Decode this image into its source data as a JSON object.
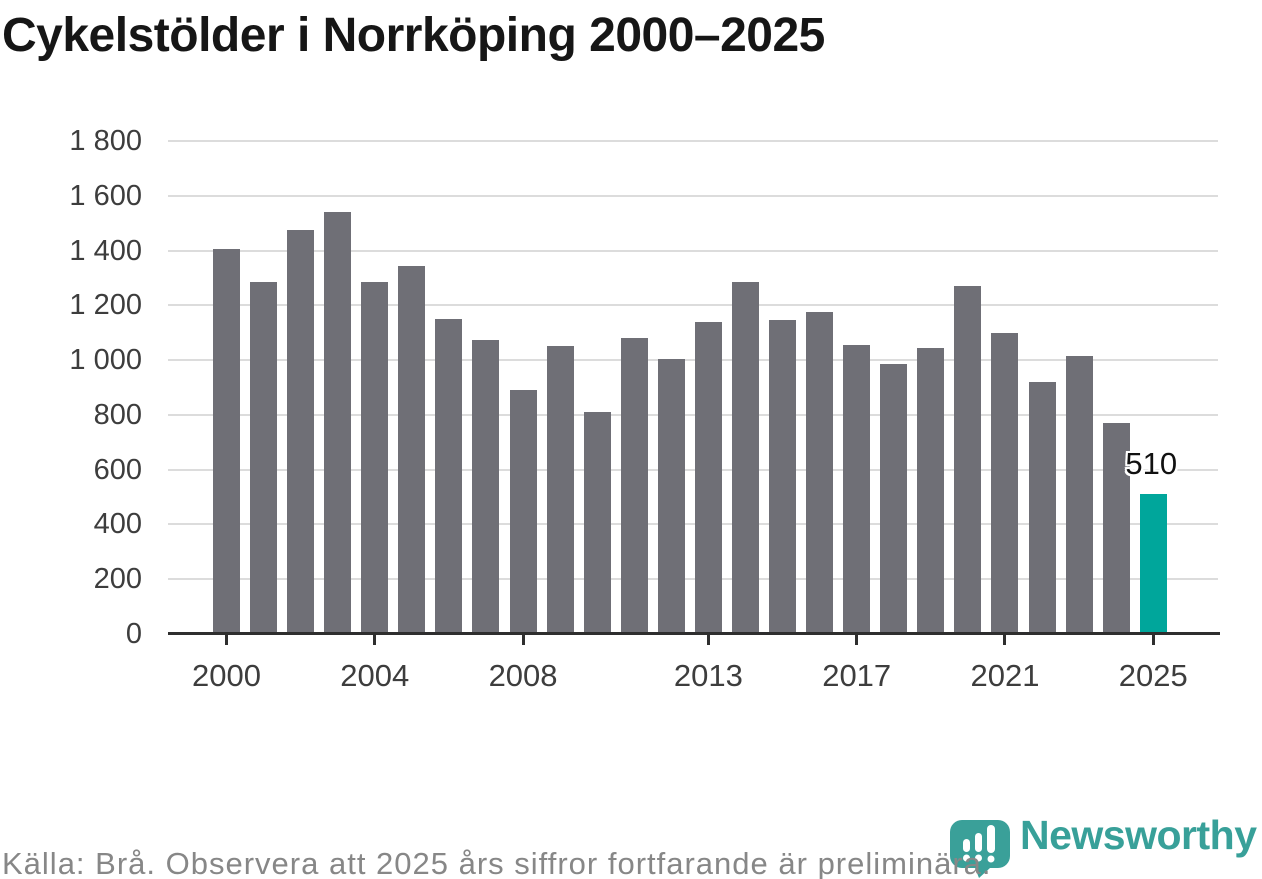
{
  "title": "Cykelstölder i Norrköping 2000–2025",
  "chart_data": {
    "type": "bar",
    "title": "Cykelstölder i Norrköping 2000–2025",
    "categories": [
      2000,
      2001,
      2002,
      2003,
      2004,
      2005,
      2006,
      2007,
      2008,
      2009,
      2010,
      2011,
      2012,
      2013,
      2014,
      2015,
      2016,
      2017,
      2018,
      2019,
      2020,
      2021,
      2022,
      2023,
      2024,
      2025
    ],
    "values": [
      1405,
      1285,
      1475,
      1540,
      1285,
      1345,
      1150,
      1075,
      890,
      1050,
      810,
      1080,
      1005,
      1140,
      1285,
      1145,
      1175,
      1055,
      985,
      1045,
      1270,
      1100,
      920,
      1015,
      770,
      510
    ],
    "xlabel": "",
    "ylabel": "",
    "ylim": [
      0,
      1800
    ],
    "ytick_step": 200,
    "ytick_labels": [
      "0",
      "200",
      "400",
      "600",
      "800",
      "1 000",
      "1 200",
      "1 400",
      "1 600",
      "1 800"
    ],
    "xtick_years": [
      2000,
      2004,
      2008,
      2013,
      2017,
      2021,
      2025
    ],
    "grid": true,
    "legend": "none",
    "bar_color": "#6f6f76",
    "highlight_color": "#00a69b",
    "highlight": {
      "year": 2025,
      "value_label": "510"
    }
  },
  "footer": {
    "source_note": "Källa: Brå. Observera att 2025 års siffror fortfarande är preliminära."
  },
  "branding": {
    "logo_text": "Newsworthy",
    "logo_color": "#38a099",
    "logo_icon": "bar-chart-bubble-icon"
  }
}
